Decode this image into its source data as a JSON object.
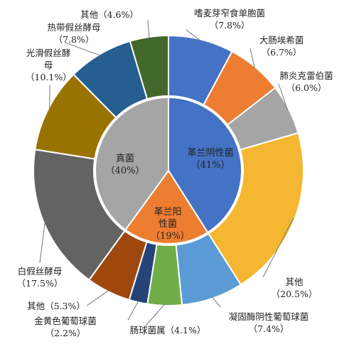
{
  "chart_data": {
    "type": "sunburst",
    "inner": {
      "categories": [
        "革兰阴性菌",
        "革兰阳性菌",
        "真菌"
      ],
      "values": [
        41,
        19,
        40
      ],
      "value_labels": [
        "（41%）",
        "（19%）",
        "（40%）"
      ],
      "colors": [
        "#4472c4",
        "#ed7d31",
        "#a5a5a5"
      ]
    },
    "outer": {
      "categories": [
        "嗜麦芽窄食单胞菌",
        "大肠埃希菌",
        "肺炎克雷伯菌",
        "其他",
        "凝固酶阴性葡萄球菌",
        "肠球菌属",
        "金黄色葡萄球菌",
        "其他",
        "白假丝酵母",
        "光滑假丝酵母",
        "热带假丝酵母",
        "其他"
      ],
      "values": [
        7.8,
        6.7,
        6.0,
        20.5,
        7.4,
        4.1,
        2.2,
        5.3,
        17.5,
        10.1,
        7.8,
        4.6
      ],
      "value_labels": [
        "（7.8%）",
        "（6.7%）",
        "（6.0%）",
        "（20.5%）",
        "（7.4%）",
        "（4.1%）",
        "（2.2%）",
        "（5.3%）",
        "（17.5%）",
        "（10.1%）",
        "（7.8%）",
        "（4.6%）"
      ],
      "colors": [
        "#4472c4",
        "#ed7d31",
        "#a5a5a5",
        "#f5b731",
        "#5b9bd5",
        "#70ad47",
        "#264478",
        "#9e480e",
        "#636363",
        "#997300",
        "#255e91",
        "#43682b"
      ]
    }
  }
}
